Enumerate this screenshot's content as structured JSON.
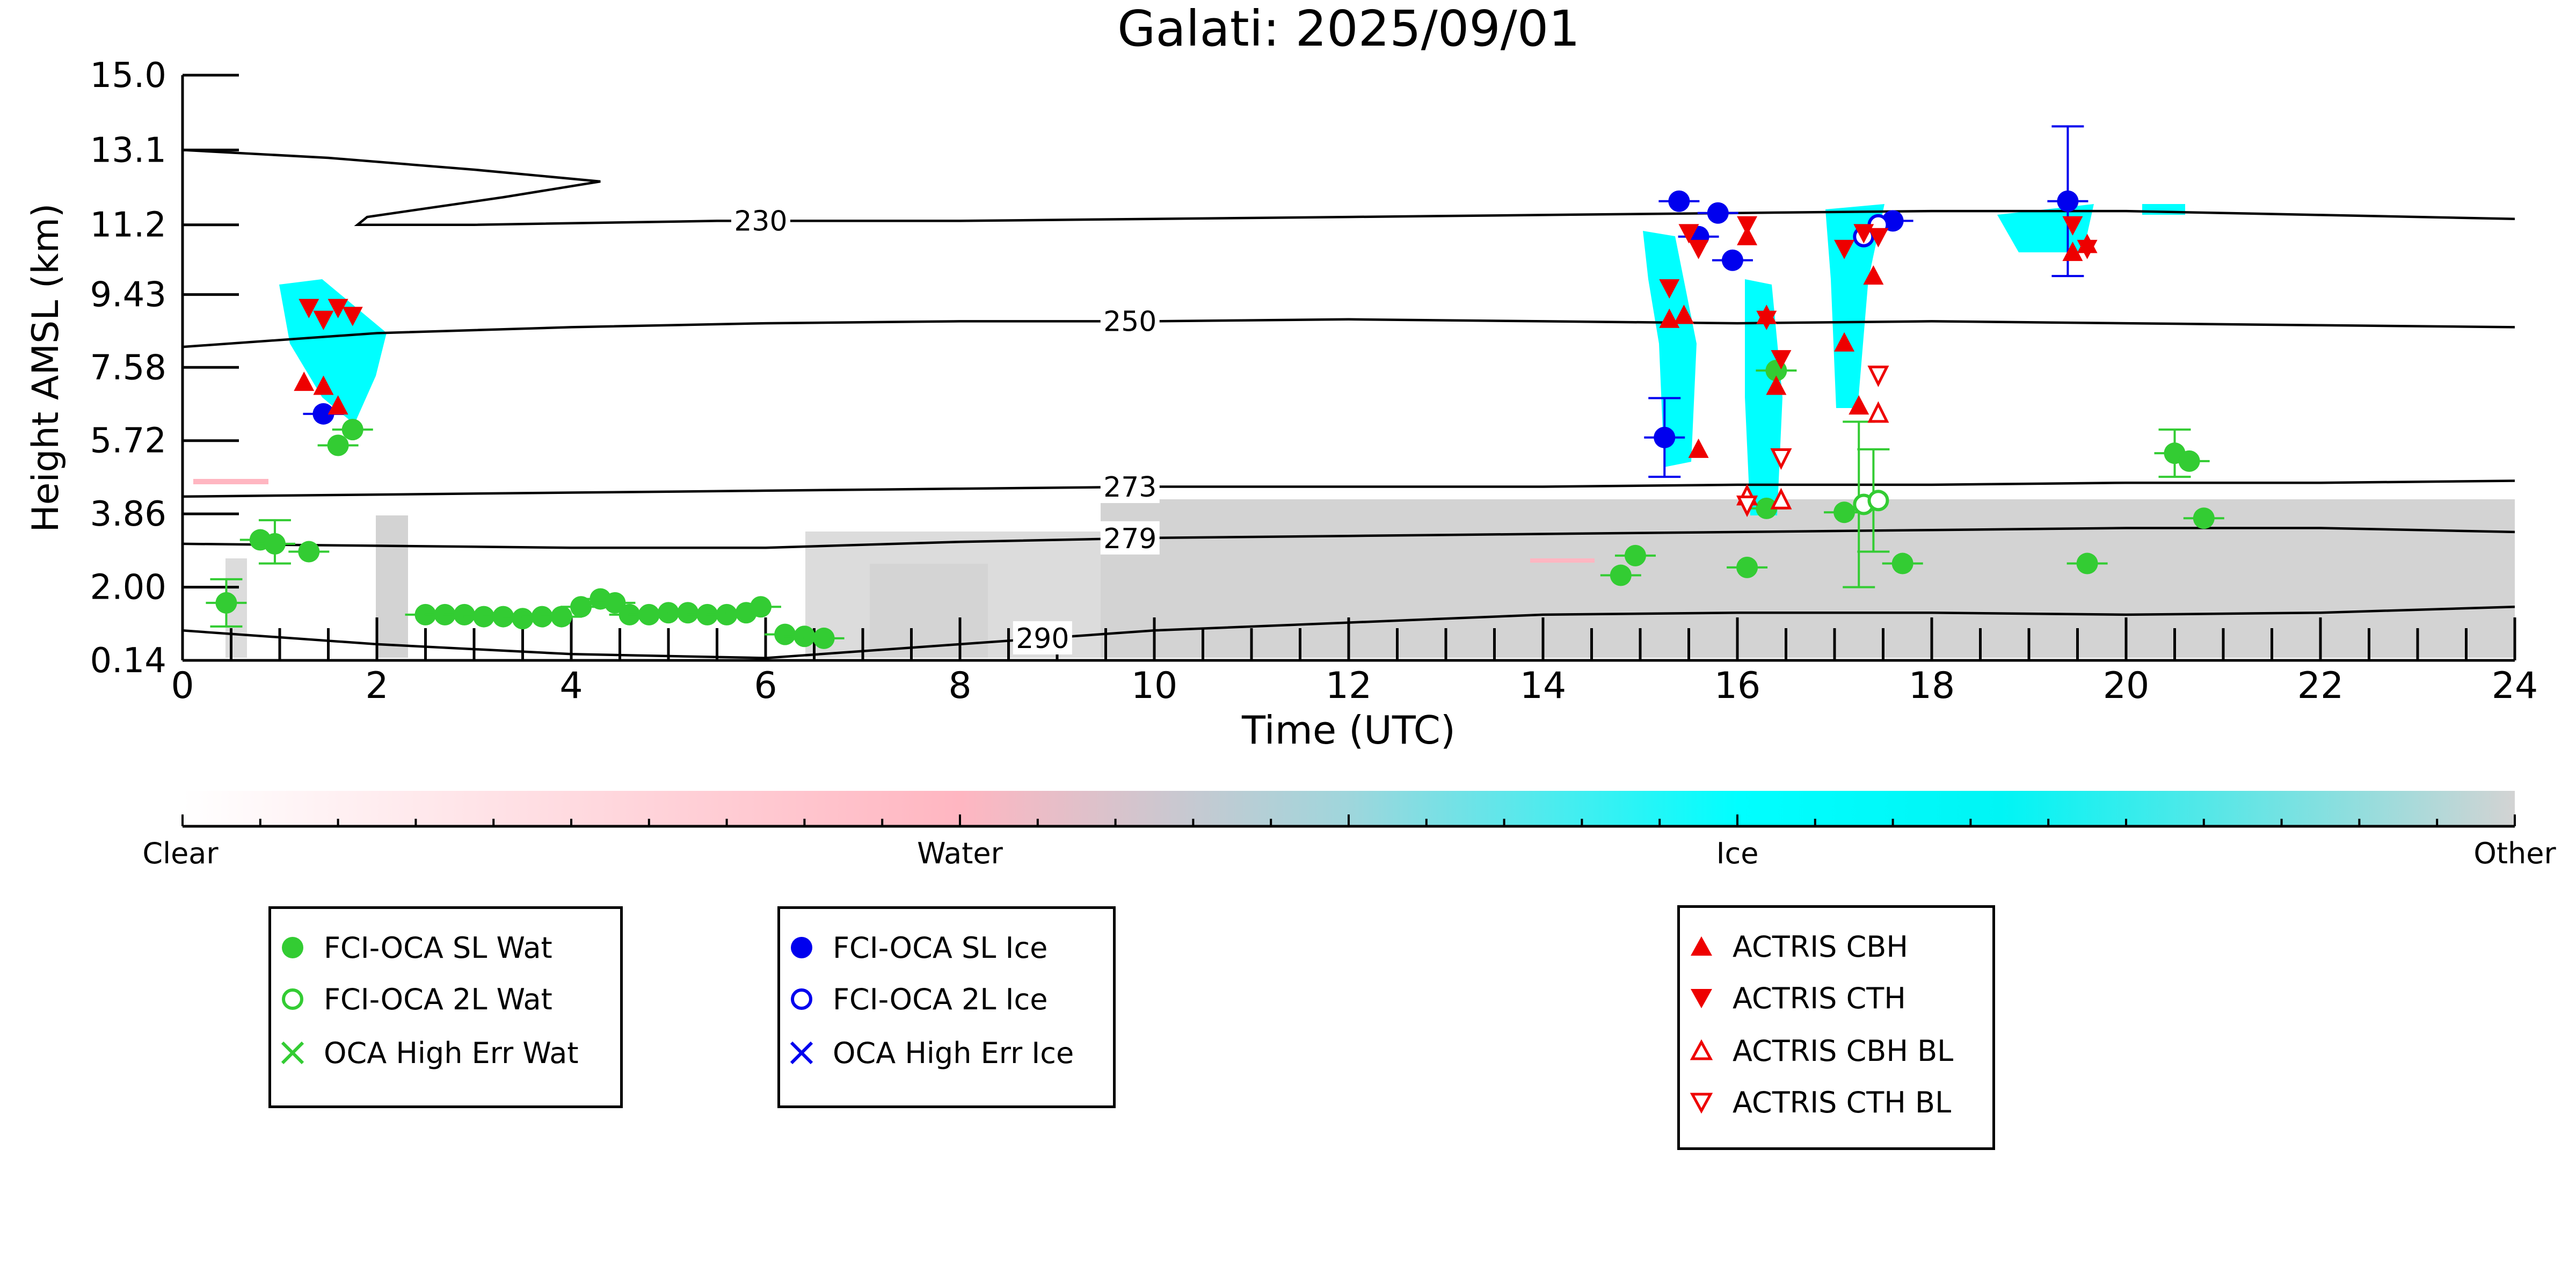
{
  "chart_data": {
    "type": "scatter",
    "title": "Galati: 2025/09/01",
    "xlabel": "Time (UTC)",
    "ylabel": "Height AMSL (km)",
    "xlim": [
      0,
      24
    ],
    "ylim": [
      0.14,
      15.0
    ],
    "x_ticks": [
      "0",
      "2",
      "4",
      "6",
      "8",
      "10",
      "12",
      "14",
      "16",
      "18",
      "20",
      "22",
      "24"
    ],
    "y_ticks": [
      "0.14",
      "2.00",
      "3.86",
      "5.72",
      "7.58",
      "9.43",
      "11.2",
      "13.1",
      "15.0"
    ],
    "grid": false,
    "colorbar": {
      "labels": [
        "Clear",
        "Water",
        "Ice",
        "Other"
      ],
      "colors": [
        "#ffffff",
        "#ffb6c1",
        "#00ffff",
        "#d3d3d3"
      ]
    },
    "contours": [
      {
        "label": "230",
        "points": [
          [
            0.0,
            13.1
          ],
          [
            1.5,
            12.9
          ],
          [
            3.0,
            12.6
          ],
          [
            4.3,
            12.3
          ],
          [
            3.3,
            11.9
          ],
          [
            1.9,
            11.4
          ],
          [
            1.8,
            11.2
          ],
          [
            3.0,
            11.2
          ],
          [
            5.5,
            11.3
          ],
          [
            8,
            11.3
          ],
          [
            10,
            11.35
          ],
          [
            12,
            11.4
          ],
          [
            14,
            11.45
          ],
          [
            16,
            11.5
          ],
          [
            18,
            11.55
          ],
          [
            20,
            11.55
          ],
          [
            22,
            11.45
          ],
          [
            24,
            11.35
          ]
        ]
      },
      {
        "label": "250",
        "points": [
          [
            0.0,
            8.1
          ],
          [
            2,
            8.45
          ],
          [
            4,
            8.6
          ],
          [
            6,
            8.7
          ],
          [
            8,
            8.75
          ],
          [
            10,
            8.75
          ],
          [
            12,
            8.8
          ],
          [
            14,
            8.75
          ],
          [
            16,
            8.7
          ],
          [
            18,
            8.75
          ],
          [
            20,
            8.7
          ],
          [
            22,
            8.65
          ],
          [
            24,
            8.6
          ]
        ]
      },
      {
        "label": "273",
        "points": [
          [
            0.0,
            4.3
          ],
          [
            2,
            4.35
          ],
          [
            4,
            4.4
          ],
          [
            6,
            4.45
          ],
          [
            8,
            4.5
          ],
          [
            10,
            4.55
          ],
          [
            12,
            4.55
          ],
          [
            14,
            4.55
          ],
          [
            16,
            4.6
          ],
          [
            18,
            4.6
          ],
          [
            20,
            4.65
          ],
          [
            22,
            4.65
          ],
          [
            24,
            4.7
          ]
        ]
      },
      {
        "label": "279",
        "points": [
          [
            0.0,
            3.1
          ],
          [
            2,
            3.05
          ],
          [
            4,
            3.0
          ],
          [
            6,
            3.0
          ],
          [
            8,
            3.15
          ],
          [
            10,
            3.25
          ],
          [
            12,
            3.3
          ],
          [
            14,
            3.35
          ],
          [
            16,
            3.4
          ],
          [
            18,
            3.45
          ],
          [
            20,
            3.5
          ],
          [
            22,
            3.5
          ],
          [
            24,
            3.4
          ]
        ]
      },
      {
        "label": "290",
        "points": [
          [
            0.0,
            0.9
          ],
          [
            2,
            0.55
          ],
          [
            4,
            0.3
          ],
          [
            6,
            0.2
          ],
          [
            8,
            0.55
          ],
          [
            10,
            0.9
          ],
          [
            12,
            1.1
          ],
          [
            14,
            1.3
          ],
          [
            16,
            1.35
          ],
          [
            18,
            1.35
          ],
          [
            20,
            1.3
          ],
          [
            22,
            1.35
          ],
          [
            24,
            1.5
          ]
        ]
      }
    ],
    "series": [
      {
        "name": "FCI-OCA SL Wat",
        "color": "#33cc33",
        "marker": "filled-circle",
        "points": [
          [
            0.45,
            1.6
          ],
          [
            0.8,
            3.2
          ],
          [
            0.95,
            3.1
          ],
          [
            1.3,
            2.9
          ],
          [
            1.6,
            5.6
          ],
          [
            1.75,
            6.0
          ],
          [
            2.5,
            1.3
          ],
          [
            2.7,
            1.3
          ],
          [
            2.9,
            1.3
          ],
          [
            3.1,
            1.25
          ],
          [
            3.3,
            1.25
          ],
          [
            3.5,
            1.2
          ],
          [
            3.7,
            1.25
          ],
          [
            3.9,
            1.25
          ],
          [
            4.1,
            1.5
          ],
          [
            4.3,
            1.7
          ],
          [
            4.45,
            1.6
          ],
          [
            4.6,
            1.3
          ],
          [
            4.8,
            1.3
          ],
          [
            5.0,
            1.35
          ],
          [
            5.2,
            1.35
          ],
          [
            5.4,
            1.3
          ],
          [
            5.6,
            1.3
          ],
          [
            5.8,
            1.35
          ],
          [
            5.95,
            1.5
          ],
          [
            6.2,
            0.8
          ],
          [
            6.4,
            0.75
          ],
          [
            6.6,
            0.7
          ],
          [
            14.8,
            2.3
          ],
          [
            14.95,
            2.8
          ],
          [
            16.1,
            2.5
          ],
          [
            16.3,
            4.0
          ],
          [
            16.4,
            7.5
          ],
          [
            17.1,
            3.9
          ],
          [
            17.7,
            2.6
          ],
          [
            19.6,
            2.6
          ],
          [
            20.5,
            5.4
          ],
          [
            20.65,
            5.2
          ],
          [
            20.8,
            3.75
          ]
        ]
      },
      {
        "name": "FCI-OCA 2L Wat",
        "color": "#33cc33",
        "marker": "open-circle",
        "points": [
          [
            17.3,
            4.1
          ],
          [
            17.45,
            4.2
          ]
        ]
      },
      {
        "name": "OCA High Err Wat",
        "color": "#33cc33",
        "marker": "x",
        "points": []
      },
      {
        "name": "FCI-OCA SL Ice",
        "color": "#0000ee",
        "marker": "filled-circle",
        "points": [
          [
            1.45,
            6.4
          ],
          [
            15.25,
            5.8
          ],
          [
            15.4,
            11.8
          ],
          [
            15.6,
            10.9
          ],
          [
            15.8,
            11.5
          ],
          [
            15.95,
            10.3
          ],
          [
            17.6,
            11.3
          ],
          [
            19.4,
            11.8
          ]
        ]
      },
      {
        "name": "FCI-OCA 2L Ice",
        "color": "#0000ee",
        "marker": "open-circle",
        "points": [
          [
            17.3,
            10.9
          ],
          [
            17.45,
            11.2
          ]
        ]
      },
      {
        "name": "OCA High Err Ice",
        "color": "#0000ee",
        "marker": "x",
        "points": []
      },
      {
        "name": "ACTRIS CBH",
        "color": "#ee0000",
        "marker": "triangle-up",
        "points": [
          [
            1.25,
            7.2
          ],
          [
            1.45,
            7.1
          ],
          [
            1.6,
            6.6
          ],
          [
            15.3,
            8.8
          ],
          [
            15.45,
            8.9
          ],
          [
            15.6,
            5.5
          ],
          [
            16.1,
            10.9
          ],
          [
            16.3,
            8.9
          ],
          [
            16.4,
            7.1
          ],
          [
            17.1,
            8.2
          ],
          [
            17.25,
            6.6
          ],
          [
            17.4,
            9.9
          ],
          [
            19.45,
            10.5
          ],
          [
            19.6,
            10.7
          ]
        ]
      },
      {
        "name": "ACTRIS CTH",
        "color": "#ee0000",
        "marker": "triangle-down",
        "points": [
          [
            1.3,
            9.1
          ],
          [
            1.45,
            8.8
          ],
          [
            1.6,
            9.1
          ],
          [
            1.75,
            8.9
          ],
          [
            15.3,
            9.6
          ],
          [
            15.5,
            11.0
          ],
          [
            15.6,
            10.6
          ],
          [
            16.1,
            11.2
          ],
          [
            16.3,
            8.8
          ],
          [
            16.45,
            7.8
          ],
          [
            17.1,
            10.6
          ],
          [
            17.3,
            11.0
          ],
          [
            17.45,
            10.9
          ],
          [
            19.45,
            11.2
          ],
          [
            19.6,
            10.6
          ]
        ]
      },
      {
        "name": "ACTRIS CBH BL",
        "color": "#ee0000",
        "marker": "open-triangle-up",
        "points": [
          [
            16.1,
            4.3
          ],
          [
            16.45,
            4.2
          ],
          [
            17.45,
            6.4
          ]
        ]
      },
      {
        "name": "ACTRIS CTH BL",
        "color": "#ee0000",
        "marker": "open-triangle-down",
        "points": [
          [
            16.1,
            4.1
          ],
          [
            16.45,
            5.3
          ],
          [
            17.45,
            7.4
          ]
        ]
      }
    ],
    "errorbars": [
      {
        "color": "#33cc33",
        "x": 0.45,
        "low": 1.0,
        "high": 2.2
      },
      {
        "color": "#33cc33",
        "x": 0.95,
        "low": 2.6,
        "high": 3.7
      },
      {
        "color": "#33cc33",
        "x": 17.25,
        "low": 2.0,
        "high": 6.2
      },
      {
        "color": "#33cc33",
        "x": 17.4,
        "low": 2.9,
        "high": 5.5
      },
      {
        "color": "#33cc33",
        "x": 20.5,
        "low": 4.8,
        "high": 6.0
      },
      {
        "color": "#0000ee",
        "x": 15.25,
        "low": 4.8,
        "high": 6.8
      },
      {
        "color": "#0000ee",
        "x": 19.4,
        "low": 9.9,
        "high": 13.7
      }
    ]
  },
  "legends": [
    {
      "items": [
        {
          "label": "FCI-OCA SL Wat",
          "color": "#33cc33",
          "marker": "filled-circle"
        },
        {
          "label": "FCI-OCA 2L Wat",
          "color": "#33cc33",
          "marker": "open-circle"
        },
        {
          "label": "OCA High Err Wat",
          "color": "#33cc33",
          "marker": "x"
        }
      ]
    },
    {
      "items": [
        {
          "label": "FCI-OCA SL Ice",
          "color": "#0000ee",
          "marker": "filled-circle"
        },
        {
          "label": "FCI-OCA 2L Ice",
          "color": "#0000ee",
          "marker": "open-circle"
        },
        {
          "label": "OCA High Err Ice",
          "color": "#0000ee",
          "marker": "x"
        }
      ]
    },
    {
      "items": [
        {
          "label": "ACTRIS CBH",
          "color": "#ee0000",
          "marker": "triangle-up"
        },
        {
          "label": "ACTRIS CTH",
          "color": "#ee0000",
          "marker": "triangle-down"
        },
        {
          "label": "ACTRIS CBH BL",
          "color": "#ee0000",
          "marker": "open-triangle-up"
        },
        {
          "label": "ACTRIS CTH BL",
          "color": "#ee0000",
          "marker": "open-triangle-down"
        }
      ]
    }
  ]
}
